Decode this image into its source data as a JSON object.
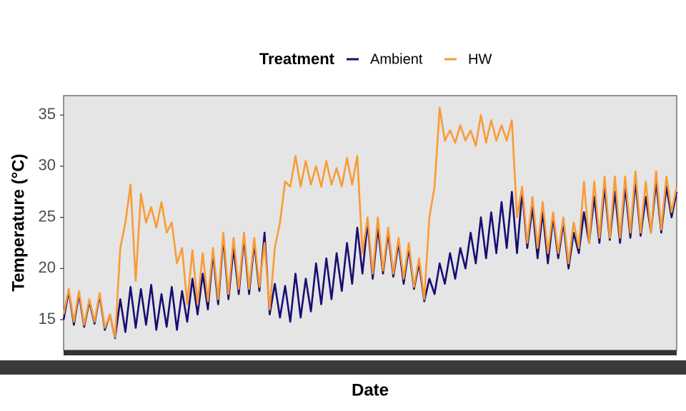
{
  "chart_data": {
    "type": "line",
    "xlabel": "Date",
    "ylabel": "Temperature (°C)",
    "legend_title": "Treatment",
    "legend": "top",
    "ylim": [
      12,
      36.9
    ],
    "yticks": [
      15,
      20,
      25,
      30,
      35
    ],
    "grid": false,
    "series": [
      {
        "name": "Ambient",
        "color": "#170d72",
        "values": [
          15.0,
          17.8,
          14.5,
          17.5,
          14.3,
          16.8,
          14.6,
          17.4,
          14.0,
          15.5,
          13.2,
          17.0,
          13.8,
          18.2,
          14.2,
          18.0,
          14.5,
          18.4,
          14.0,
          17.5,
          14.3,
          18.2,
          14.0,
          17.8,
          14.8,
          19.0,
          15.5,
          19.5,
          16.0,
          21.5,
          16.5,
          23.0,
          17.0,
          22.0,
          17.5,
          23.0,
          17.5,
          22.5,
          17.8,
          23.5,
          15.5,
          18.5,
          15.2,
          18.3,
          14.8,
          19.5,
          15.2,
          19.0,
          15.8,
          20.5,
          16.5,
          21.0,
          17.0,
          21.5,
          17.8,
          22.5,
          18.5,
          24.0,
          19.5,
          24.5,
          19.0,
          24.0,
          19.5,
          23.5,
          19.2,
          22.5,
          18.5,
          22.0,
          18.0,
          20.5,
          16.8,
          19.0,
          17.5,
          20.5,
          18.5,
          21.5,
          19.0,
          22.0,
          20.0,
          23.5,
          20.5,
          25.0,
          21.0,
          25.5,
          21.5,
          26.5,
          22.0,
          27.5,
          21.5,
          27.5,
          22.0,
          26.0,
          21.0,
          25.5,
          20.5,
          25.0,
          21.0,
          24.5,
          20.0,
          23.5,
          21.5,
          25.5,
          22.5,
          27.0,
          22.5,
          28.0,
          22.8,
          27.5,
          22.5,
          28.0,
          23.0,
          28.5,
          23.2,
          27.0,
          23.5,
          28.5,
          23.5,
          28.0,
          25.0,
          27.5
        ]
      },
      {
        "name": "HW",
        "color": "#f99b34",
        "values": [
          15.5,
          18.0,
          14.8,
          17.8,
          14.5,
          17.0,
          14.8,
          17.6,
          14.2,
          15.5,
          13.3,
          22.0,
          24.5,
          28.2,
          18.8,
          27.3,
          24.5,
          26.0,
          24.0,
          26.5,
          23.5,
          24.5,
          20.5,
          22.0,
          16.5,
          21.8,
          16.5,
          21.5,
          16.8,
          22.0,
          17.0,
          23.5,
          17.5,
          23.0,
          18.0,
          23.5,
          18.0,
          23.0,
          18.2,
          22.5,
          16.0,
          22.0,
          24.5,
          28.5,
          28.0,
          31.0,
          28.0,
          30.5,
          28.2,
          30.0,
          28.0,
          30.5,
          28.2,
          29.8,
          28.0,
          30.8,
          28.2,
          31.0,
          21.5,
          25.0,
          19.5,
          25.0,
          19.8,
          24.0,
          19.5,
          23.0,
          19.0,
          22.5,
          18.2,
          21.0,
          17.0,
          25.0,
          28.0,
          35.7,
          32.5,
          33.5,
          32.3,
          34.0,
          32.5,
          33.5,
          32.0,
          35.0,
          32.3,
          34.5,
          32.5,
          34.0,
          32.5,
          34.5,
          25.0,
          28.0,
          22.5,
          27.0,
          22.0,
          26.5,
          21.5,
          25.5,
          21.5,
          25.0,
          20.5,
          24.5,
          22.0,
          28.5,
          22.5,
          28.5,
          23.0,
          29.0,
          23.0,
          29.0,
          23.0,
          29.0,
          23.5,
          29.5,
          23.5,
          28.5,
          23.5,
          29.5,
          23.8,
          29.0,
          25.5,
          28.0
        ]
      }
    ]
  }
}
